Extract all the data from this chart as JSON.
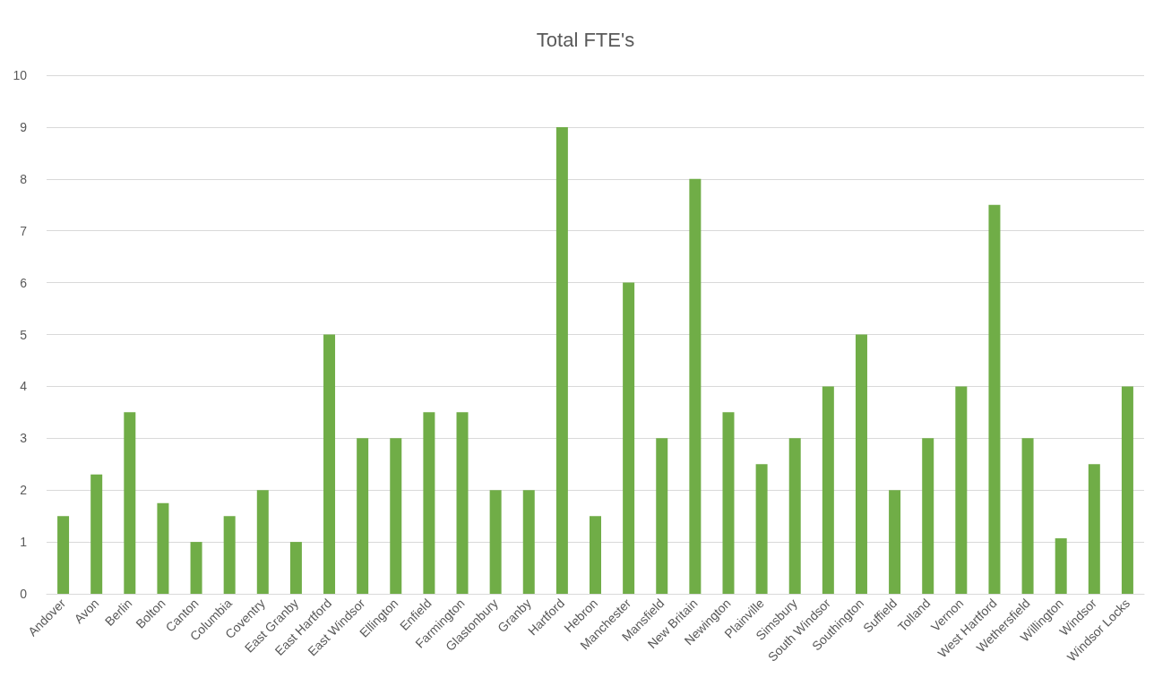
{
  "chart_data": {
    "type": "bar",
    "title": "Total FTE's",
    "categories": [
      "Andover",
      "Avon",
      "Berlin",
      "Bolton",
      "Canton",
      "Columbia",
      "Coventry",
      "East Granby",
      "East Hartford",
      "East Windsor",
      "Ellington",
      "Enfield",
      "Farmington",
      "Glastonbury",
      "Granby",
      "Hartford",
      "Hebron",
      "Manchester",
      "Mansfield",
      "New Britain",
      "Newington",
      "Plainville",
      "Simsbury",
      "South Windsor",
      "Southington",
      "Suffield",
      "Tolland",
      "Vernon",
      "West Hartford",
      "Wethersfield",
      "Willington",
      "Windsor",
      "Windsor Locks"
    ],
    "values": [
      1.5,
      2.3,
      3.5,
      1.75,
      1,
      1.5,
      2,
      1,
      5,
      3,
      3,
      3.5,
      3.5,
      2,
      2,
      9,
      1.5,
      6,
      3,
      8,
      3.5,
      2.5,
      3,
      4,
      5,
      2,
      3,
      4,
      7.5,
      3,
      1.07,
      2.5,
      4
    ],
    "color": "#70ad47",
    "ylim": [
      0,
      10
    ],
    "yticks": [
      0,
      1,
      2,
      3,
      4,
      5,
      6,
      7,
      8,
      9,
      10
    ],
    "grid": "y"
  }
}
